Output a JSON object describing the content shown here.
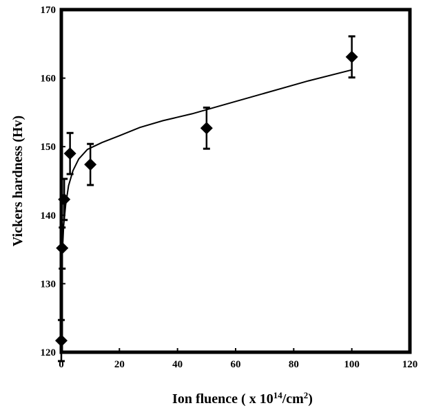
{
  "chart_data": {
    "type": "scatter",
    "title": "",
    "xlabel": "Ion fluence ( x 10",
    "xlabel_sup": "14",
    "xlabel_mid": "/cm",
    "xlabel_sup2": "2",
    "xlabel_end": ")",
    "ylabel": "Vickers hardness (Hv)",
    "xlim": [
      0,
      120
    ],
    "ylim": [
      120,
      170
    ],
    "xticks": [
      "0",
      "20",
      "40",
      "60",
      "80",
      "100",
      "120"
    ],
    "yticks": [
      "120",
      "130",
      "140",
      "150",
      "160",
      "170"
    ],
    "grid": false,
    "points": [
      {
        "x": 0,
        "y": 121.7,
        "err": 3.0
      },
      {
        "x": 0.3,
        "y": 135.2,
        "err": 3.0
      },
      {
        "x": 1,
        "y": 142.3,
        "err": 3.0
      },
      {
        "x": 3,
        "y": 149.0,
        "err": 3.0
      },
      {
        "x": 10,
        "y": 147.4,
        "err": 3.0
      },
      {
        "x": 50,
        "y": 152.7,
        "err": 3.0
      },
      {
        "x": 100,
        "y": 163.1,
        "err": 3.0
      }
    ],
    "fit_curve": [
      [
        0.05,
        128.5
      ],
      [
        0.3,
        134.0
      ],
      [
        0.8,
        138.5
      ],
      [
        1.5,
        141.5
      ],
      [
        2.5,
        144.3
      ],
      [
        4,
        146.5
      ],
      [
        6,
        148.2
      ],
      [
        9,
        149.6
      ],
      [
        14,
        150.6
      ],
      [
        20,
        151.6
      ],
      [
        27,
        152.8
      ],
      [
        35,
        153.8
      ],
      [
        45,
        154.8
      ],
      [
        55,
        156.0
      ],
      [
        70,
        157.8
      ],
      [
        85,
        159.6
      ],
      [
        100,
        161.2
      ]
    ]
  }
}
